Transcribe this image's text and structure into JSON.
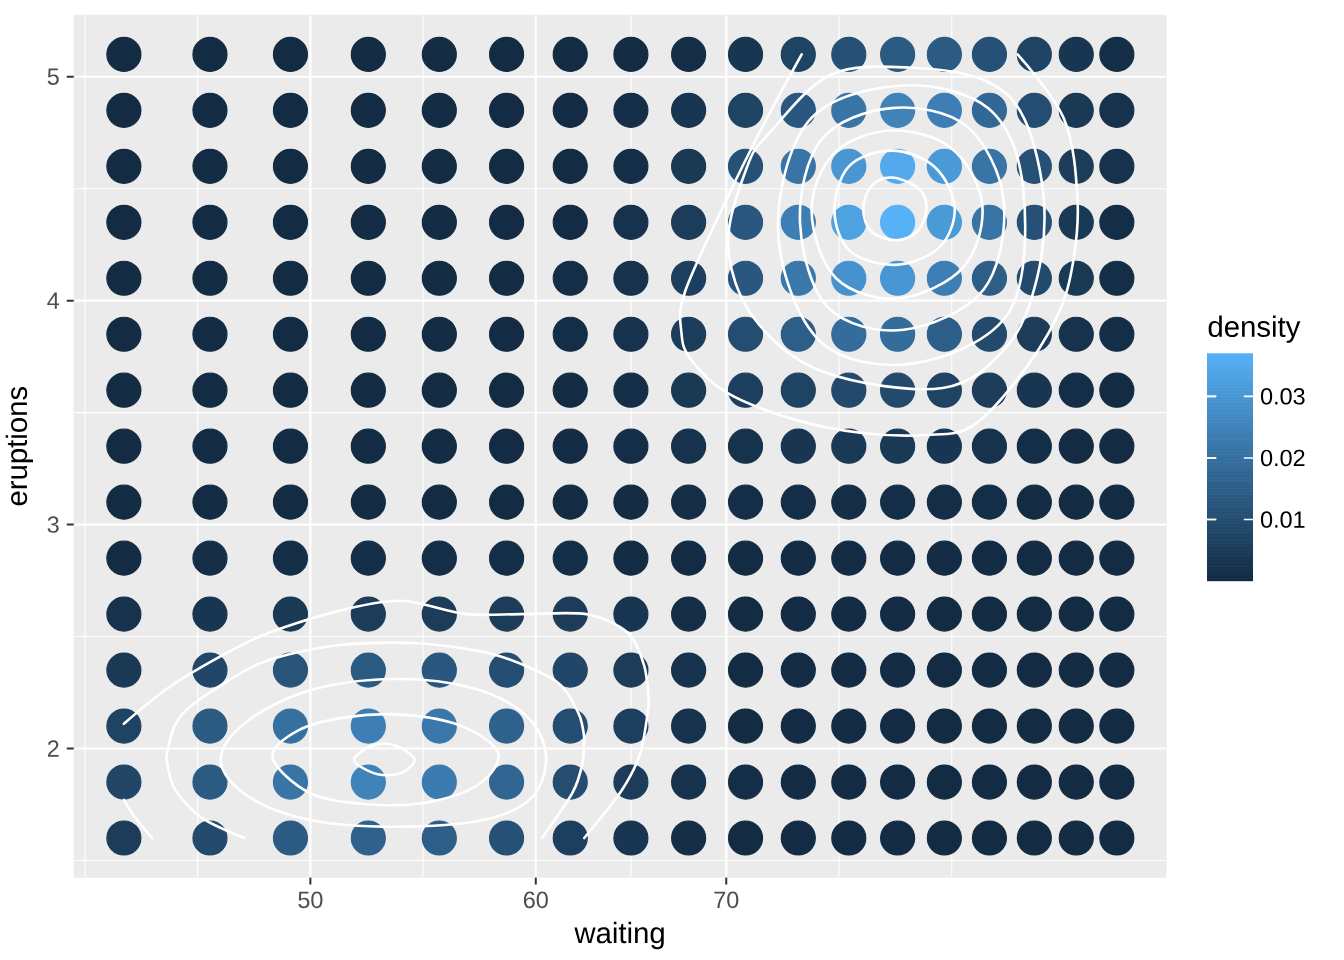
{
  "chart_data": {
    "type": "scatter",
    "xlabel": "waiting",
    "ylabel": "eruptions",
    "clabel": "density",
    "log": "x",
    "grid": true,
    "marker": "circle",
    "xlim": [
      41.3,
      99.9
    ],
    "ylim": [
      1.425,
      5.275
    ],
    "xticks": [
      50,
      60,
      70
    ],
    "yticks": [
      2,
      3,
      4,
      5
    ],
    "clim": [
      0,
      0.037
    ],
    "cticks": [
      0.01,
      0.02,
      0.03
    ],
    "x": [
      43,
      46.1,
      49.2,
      52.4,
      55.5,
      58.6,
      61.7,
      64.8,
      67.9,
      71.1,
      74.2,
      77.3,
      80.4,
      83.5,
      86.6,
      89.8,
      92.9,
      96,
      43,
      46.1,
      49.2,
      52.4,
      55.5,
      58.6,
      61.7,
      64.8,
      67.9,
      71.1,
      74.2,
      77.3,
      80.4,
      83.5,
      86.6,
      89.8,
      92.9,
      96,
      43,
      46.1,
      49.2,
      52.4,
      55.5,
      58.6,
      61.7,
      64.8,
      67.9,
      71.1,
      74.2,
      77.3,
      80.4,
      83.5,
      86.6,
      89.8,
      92.9,
      96,
      43,
      46.1,
      49.2,
      52.4,
      55.5,
      58.6,
      61.7,
      64.8,
      67.9,
      71.1,
      74.2,
      77.3,
      80.4,
      83.5,
      86.6,
      89.8,
      92.9,
      96,
      43,
      46.1,
      49.2,
      52.4,
      55.5,
      58.6,
      61.7,
      64.8,
      67.9,
      71.1,
      74.2,
      77.3,
      80.4,
      83.5,
      86.6,
      89.8,
      92.9,
      96,
      43,
      46.1,
      49.2,
      52.4,
      55.5,
      58.6,
      61.7,
      64.8,
      67.9,
      71.1,
      74.2,
      77.3,
      80.4,
      83.5,
      86.6,
      89.8,
      92.9,
      96,
      43,
      46.1,
      49.2,
      52.4,
      55.5,
      58.6,
      61.7,
      64.8,
      67.9,
      71.1,
      74.2,
      77.3,
      80.4,
      83.5,
      86.6,
      89.8,
      92.9,
      96,
      43,
      46.1,
      49.2,
      52.4,
      55.5,
      58.6,
      61.7,
      64.8,
      67.9,
      71.1,
      74.2,
      77.3,
      80.4,
      83.5,
      86.6,
      89.8,
      92.9,
      96,
      43,
      46.1,
      49.2,
      52.4,
      55.5,
      58.6,
      61.7,
      64.8,
      67.9,
      71.1,
      74.2,
      77.3,
      80.4,
      83.5,
      86.6,
      89.8,
      92.9,
      96,
      43,
      46.1,
      49.2,
      52.4,
      55.5,
      58.6,
      61.7,
      64.8,
      67.9,
      71.1,
      74.2,
      77.3,
      80.4,
      83.5,
      86.6,
      89.8,
      92.9,
      96,
      43,
      46.1,
      49.2,
      52.4,
      55.5,
      58.6,
      61.7,
      64.8,
      67.9,
      71.1,
      74.2,
      77.3,
      80.4,
      83.5,
      86.6,
      89.8,
      92.9,
      96,
      43,
      46.1,
      49.2,
      52.4,
      55.5,
      58.6,
      61.7,
      64.8,
      67.9,
      71.1,
      74.2,
      77.3,
      80.4,
      83.5,
      86.6,
      89.8,
      92.9,
      96,
      43,
      46.1,
      49.2,
      52.4,
      55.5,
      58.6,
      61.7,
      64.8,
      67.9,
      71.1,
      74.2,
      77.3,
      80.4,
      83.5,
      86.6,
      89.8,
      92.9,
      96,
      43,
      46.1,
      49.2,
      52.4,
      55.5,
      58.6,
      61.7,
      64.8,
      67.9,
      71.1,
      74.2,
      77.3,
      80.4,
      83.5,
      86.6,
      89.8,
      92.9,
      96,
      43,
      46.1,
      49.2,
      52.4,
      55.5,
      58.6,
      61.7,
      64.8,
      67.9,
      71.1,
      74.2,
      77.3,
      80.4,
      83.5,
      86.6,
      89.8,
      92.9,
      96
    ],
    "values": [
      1.6,
      1.6,
      1.6,
      1.6,
      1.6,
      1.6,
      1.6,
      1.6,
      1.6,
      1.6,
      1.6,
      1.6,
      1.6,
      1.6,
      1.6,
      1.6,
      1.6,
      1.6,
      1.85,
      1.85,
      1.85,
      1.85,
      1.85,
      1.85,
      1.85,
      1.85,
      1.85,
      1.85,
      1.85,
      1.85,
      1.85,
      1.85,
      1.85,
      1.85,
      1.85,
      1.85,
      2.1,
      2.1,
      2.1,
      2.1,
      2.1,
      2.1,
      2.1,
      2.1,
      2.1,
      2.1,
      2.1,
      2.1,
      2.1,
      2.1,
      2.1,
      2.1,
      2.1,
      2.1,
      2.35,
      2.35,
      2.35,
      2.35,
      2.35,
      2.35,
      2.35,
      2.35,
      2.35,
      2.35,
      2.35,
      2.35,
      2.35,
      2.35,
      2.35,
      2.35,
      2.35,
      2.35,
      2.6,
      2.6,
      2.6,
      2.6,
      2.6,
      2.6,
      2.6,
      2.6,
      2.6,
      2.6,
      2.6,
      2.6,
      2.6,
      2.6,
      2.6,
      2.6,
      2.6,
      2.6,
      2.85,
      2.85,
      2.85,
      2.85,
      2.85,
      2.85,
      2.85,
      2.85,
      2.85,
      2.85,
      2.85,
      2.85,
      2.85,
      2.85,
      2.85,
      2.85,
      2.85,
      2.85,
      3.1,
      3.1,
      3.1,
      3.1,
      3.1,
      3.1,
      3.1,
      3.1,
      3.1,
      3.1,
      3.1,
      3.1,
      3.1,
      3.1,
      3.1,
      3.1,
      3.1,
      3.1,
      3.35,
      3.35,
      3.35,
      3.35,
      3.35,
      3.35,
      3.35,
      3.35,
      3.35,
      3.35,
      3.35,
      3.35,
      3.35,
      3.35,
      3.35,
      3.35,
      3.35,
      3.35,
      3.6,
      3.6,
      3.6,
      3.6,
      3.6,
      3.6,
      3.6,
      3.6,
      3.6,
      3.6,
      3.6,
      3.6,
      3.6,
      3.6,
      3.6,
      3.6,
      3.6,
      3.6,
      3.85,
      3.85,
      3.85,
      3.85,
      3.85,
      3.85,
      3.85,
      3.85,
      3.85,
      3.85,
      3.85,
      3.85,
      3.85,
      3.85,
      3.85,
      3.85,
      3.85,
      3.85,
      4.1,
      4.1,
      4.1,
      4.1,
      4.1,
      4.1,
      4.1,
      4.1,
      4.1,
      4.1,
      4.1,
      4.1,
      4.1,
      4.1,
      4.1,
      4.1,
      4.1,
      4.1,
      4.35,
      4.35,
      4.35,
      4.35,
      4.35,
      4.35,
      4.35,
      4.35,
      4.35,
      4.35,
      4.35,
      4.35,
      4.35,
      4.35,
      4.35,
      4.35,
      4.35,
      4.35,
      4.6,
      4.6,
      4.6,
      4.6,
      4.6,
      4.6,
      4.6,
      4.6,
      4.6,
      4.6,
      4.6,
      4.6,
      4.6,
      4.6,
      4.6,
      4.6,
      4.6,
      4.6,
      4.85,
      4.85,
      4.85,
      4.85,
      4.85,
      4.85,
      4.85,
      4.85,
      4.85,
      4.85,
      4.85,
      4.85,
      4.85,
      4.85,
      4.85,
      4.85,
      4.85,
      4.85,
      5.1,
      5.1,
      5.1,
      5.1,
      5.1,
      5.1,
      5.1,
      5.1,
      5.1,
      5.1,
      5.1,
      5.1,
      5.1,
      5.1,
      5.1,
      5.1,
      5.1,
      5.1
    ],
    "cvalues": [
      0.005,
      0.009,
      0.014,
      0.016,
      0.015,
      0.011,
      0.006,
      0.003,
      0.001,
      0,
      0,
      0,
      0,
      0,
      0,
      0,
      0,
      0,
      0.008,
      0.014,
      0.021,
      0.025,
      0.023,
      0.017,
      0.01,
      0.005,
      0.002,
      0.001,
      0,
      0,
      0,
      0,
      0,
      0,
      0,
      0,
      0.007,
      0.014,
      0.02,
      0.024,
      0.022,
      0.016,
      0.01,
      0.006,
      0.002,
      0,
      0,
      0,
      0,
      0,
      0,
      0,
      0,
      0,
      0.004,
      0.008,
      0.012,
      0.014,
      0.013,
      0.01,
      0.008,
      0.005,
      0.002,
      0,
      0,
      0,
      0,
      0,
      0,
      0,
      0,
      0,
      0.002,
      0.003,
      0.004,
      0.005,
      0.005,
      0.005,
      0.005,
      0.003,
      0.001,
      0,
      0,
      0,
      0,
      0,
      0,
      0,
      0,
      0,
      0,
      0.001,
      0.001,
      0.001,
      0.001,
      0.001,
      0.001,
      0,
      0,
      0,
      0,
      0,
      0,
      0,
      0,
      0,
      0,
      0,
      0,
      0,
      0,
      0,
      0,
      0,
      0,
      0,
      0.001,
      0.001,
      0.001,
      0.001,
      0.001,
      0.001,
      0.001,
      0,
      0,
      0,
      0,
      0,
      0,
      0,
      0,
      0,
      0,
      0.001,
      0.002,
      0.002,
      0.003,
      0.004,
      0.004,
      0.003,
      0.002,
      0.001,
      0,
      0,
      0,
      0,
      0,
      0,
      0,
      0,
      0,
      0.001,
      0.004,
      0.006,
      0.007,
      0.009,
      0.009,
      0.007,
      0.005,
      0.003,
      0.001,
      0,
      0,
      0,
      0,
      0,
      0,
      0,
      0.001,
      0.002,
      0.005,
      0.01,
      0.015,
      0.019,
      0.019,
      0.015,
      0.009,
      0.005,
      0.002,
      0.001,
      0,
      0,
      0,
      0,
      0,
      0,
      0.001,
      0.002,
      0.006,
      0.013,
      0.022,
      0.029,
      0.03,
      0.024,
      0.015,
      0.009,
      0.004,
      0.001,
      0,
      0,
      0,
      0,
      0,
      0,
      0,
      0.002,
      0.005,
      0.013,
      0.024,
      0.033,
      0.037,
      0.031,
      0.021,
      0.011,
      0.004,
      0.001,
      0,
      0,
      0,
      0,
      0,
      0,
      0,
      0.001,
      0.004,
      0.011,
      0.021,
      0.03,
      0.035,
      0.031,
      0.021,
      0.011,
      0.005,
      0.002,
      0,
      0,
      0,
      0,
      0,
      0,
      0,
      0.001,
      0.003,
      0.007,
      0.013,
      0.021,
      0.025,
      0.024,
      0.018,
      0.01,
      0.004,
      0.002,
      0,
      0,
      0,
      0,
      0,
      0,
      0,
      0,
      0.001,
      0.003,
      0.007,
      0.011,
      0.014,
      0.014,
      0.011,
      0.007,
      0.003,
      0.001
    ],
    "colors": [
      "#1C3C5A",
      "#234A6C",
      "#2B5B83",
      "#2F618D",
      "#2D5E88",
      "#265076",
      "#1D3F5F",
      "#183551",
      "#152E48",
      "#132B43",
      "#132B43",
      "#132B43",
      "#132B43",
      "#132B43",
      "#132B43",
      "#132B43",
      "#132B43",
      "#132B43",
      "#214668",
      "#2B5B83",
      "#3874A5",
      "#3F83B9",
      "#3C7BAF",
      "#306591",
      "#244D71",
      "#1C3C5A",
      "#16324C",
      "#152E48",
      "#132B43",
      "#132B43",
      "#132B43",
      "#132B43",
      "#132B43",
      "#132B43",
      "#132B43",
      "#132B43",
      "#1F4363",
      "#2B5B83",
      "#3670A0",
      "#3D7FB4",
      "#3A77AA",
      "#2F618D",
      "#244D71",
      "#1D3F5F",
      "#16324C",
      "#132B43",
      "#132B43",
      "#132B43",
      "#132B43",
      "#132B43",
      "#132B43",
      "#132B43",
      "#132B43",
      "#132B43",
      "#1A3955",
      "#214668",
      "#28547A",
      "#2B5B83",
      "#29577F",
      "#244D71",
      "#214668",
      "#1C3C5A",
      "#16324C",
      "#132B43",
      "#132B43",
      "#132B43",
      "#132B43",
      "#132B43",
      "#132B43",
      "#132B43",
      "#132B43",
      "#132B43",
      "#16324C",
      "#183551",
      "#1A3955",
      "#1C3C5A",
      "#1C3C5A",
      "#1C3C5A",
      "#1C3C5A",
      "#183551",
      "#152E48",
      "#132B43",
      "#132B43",
      "#132B43",
      "#132B43",
      "#132B43",
      "#132B43",
      "#132B43",
      "#132B43",
      "#132B43",
      "#132B43",
      "#152E48",
      "#152E48",
      "#152E48",
      "#152E48",
      "#152E48",
      "#152E48",
      "#132B43",
      "#132B43",
      "#132B43",
      "#132B43",
      "#132B43",
      "#132B43",
      "#132B43",
      "#132B43",
      "#132B43",
      "#132B43",
      "#132B43",
      "#132B43",
      "#132B43",
      "#132B43",
      "#132B43",
      "#132B43",
      "#132B43",
      "#132B43",
      "#132B43",
      "#152E48",
      "#152E48",
      "#152E48",
      "#152E48",
      "#152E48",
      "#152E48",
      "#152E48",
      "#132B43",
      "#132B43",
      "#132B43",
      "#132B43",
      "#132B43",
      "#132B43",
      "#132B43",
      "#132B43",
      "#132B43",
      "#132B43",
      "#152E48",
      "#16324C",
      "#16324C",
      "#183551",
      "#1A3955",
      "#1A3955",
      "#183551",
      "#16324C",
      "#152E48",
      "#132B43",
      "#132B43",
      "#132B43",
      "#132B43",
      "#132B43",
      "#132B43",
      "#132B43",
      "#132B43",
      "#132B43",
      "#152E48",
      "#1A3955",
      "#1D3F5F",
      "#1F4363",
      "#234A6C",
      "#234A6C",
      "#1F4363",
      "#1C3C5A",
      "#183551",
      "#152E48",
      "#132B43",
      "#132B43",
      "#132B43",
      "#132B43",
      "#132B43",
      "#132B43",
      "#132B43",
      "#152E48",
      "#16324C",
      "#1C3C5A",
      "#244D71",
      "#2D5E88",
      "#346C9B",
      "#346C9B",
      "#2D5E88",
      "#234A6C",
      "#1C3C5A",
      "#16324C",
      "#152E48",
      "#132B43",
      "#132B43",
      "#132B43",
      "#132B43",
      "#132B43",
      "#132B43",
      "#152E48",
      "#16324C",
      "#1D3F5F",
      "#29577F",
      "#3A77AA",
      "#4792CE",
      "#4996D3",
      "#3D7FB4",
      "#2D5E88",
      "#234A6C",
      "#1A3955",
      "#152E48",
      "#132B43",
      "#132B43",
      "#132B43",
      "#132B43",
      "#132B43",
      "#132B43",
      "#132B43",
      "#16324C",
      "#1C3C5A",
      "#29577F",
      "#3D7FB4",
      "#4EA2E2",
      "#56B1F7",
      "#4B9AD8",
      "#3874A5",
      "#265076",
      "#1A3955",
      "#152E48",
      "#132B43",
      "#132B43",
      "#132B43",
      "#132B43",
      "#132B43",
      "#132B43",
      "#132B43",
      "#152E48",
      "#1A3955",
      "#265076",
      "#3874A5",
      "#4996D3",
      "#52A9ED",
      "#4B9AD8",
      "#3874A5",
      "#265076",
      "#1C3C5A",
      "#16324C",
      "#132B43",
      "#132B43",
      "#132B43",
      "#132B43",
      "#132B43",
      "#132B43",
      "#132B43",
      "#152E48",
      "#183551",
      "#1F4363",
      "#29577F",
      "#3874A5",
      "#3F83B9",
      "#3D7FB4",
      "#326896",
      "#244D71",
      "#1A3955",
      "#16324C",
      "#132B43",
      "#132B43",
      "#132B43",
      "#132B43",
      "#132B43",
      "#132B43",
      "#132B43",
      "#132B43",
      "#152E48",
      "#183551",
      "#1F4363",
      "#265076",
      "#2B5B83",
      "#2B5B83",
      "#265076",
      "#1F4363",
      "#183551",
      "#152E48"
    ],
    "series": [
      {
        "type": "line",
        "color": "#ffffff",
        "marker": "none",
        "x": [
          44.5,
          44.8,
          45.8,
          47.4
        ],
        "values": [
          1.96,
          1.82,
          1.69,
          1.6
        ]
      },
      {
        "type": "line",
        "color": "#ffffff",
        "marker": "none",
        "x": [
          44.5,
          44.8,
          45.5,
          48.0,
          51.0,
          54.5,
          58.0,
          61.0,
          62.1,
          62.4
        ],
        "values": [
          1.96,
          2.1,
          2.2,
          2.38,
          2.46,
          2.47,
          2.42,
          2.3,
          2.16,
          2.05
        ]
      },
      {
        "type": "line",
        "color": "#ffffff",
        "marker": "none",
        "x": [
          60.3,
          61.8,
          62.3,
          62.4
        ],
        "values": [
          1.6,
          1.8,
          1.93,
          2.05
        ]
      },
      {
        "type": "line",
        "color": "#ffffff",
        "marker": "none",
        "x": [
          43.0,
          44.8,
          47.8,
          51.0,
          53.8,
          56.7,
          59.3,
          62.5,
          64.6,
          65.5,
          65.75
        ],
        "values": [
          2.11,
          2.29,
          2.49,
          2.61,
          2.66,
          2.6,
          2.6,
          2.6,
          2.52,
          2.37,
          2.2
        ]
      },
      {
        "type": "line",
        "color": "#ffffff",
        "marker": "none",
        "x": [
          62.4,
          64.3,
          65.3,
          65.75
        ],
        "values": [
          1.6,
          1.81,
          1.98,
          2.2
        ]
      }
    ]
  }
}
